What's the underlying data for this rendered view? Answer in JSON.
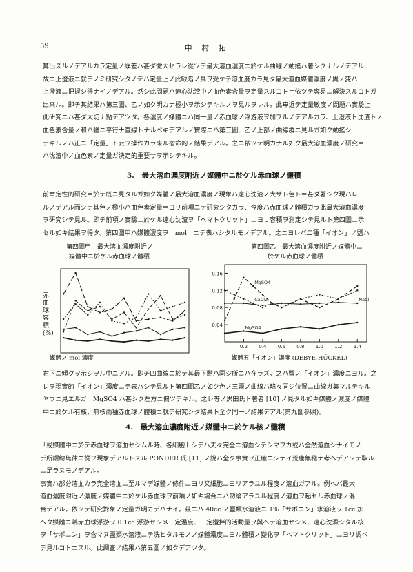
{
  "header": {
    "page_number": "59",
    "author": "中村拓"
  },
  "para1": [
    "算出スルノデアルカラ定量ノ誤差ハ甚ダ微大セラレ從ツテ最大溶血濃度ニ於ケル曲線ノ動搖ハ著シクナルノデアル",
    "故ニ上澄液ニ就テノミ研究シタノデハ定量上ノ此缺陷ノ爲ヲ受ケテ溶血度カラ見タ最大溶血媒體濃度ノ異ノ変ハ",
    "上澄液ニ把握シ得ナイノデアル。然シ此問題ハ遠心沈渣中ノ血色素含量ヲ定量スルコト＝依ツテ容易ニ解決スルコトガ",
    "出來ル。即チ其結果ハ第三圖、乙ノ如ク明カナ極小ヲ示シテキルノヲ見ルヲレル。此卑近テ定量敏度ノ問題ハ實驗上",
    "此研究ニハ甚ダ大切ナ點デアツタ。各濃度ノ媒體ニハ同一量ノ赤血球ノ浮游液ヲ加フルノデアルカラ、上澄液ト沈渣トノ",
    "血色素含量ノ和ハ猶ニ平行ナ直線トナルベキデアルノ實際ニハ第三圖、乙ノ上部ノ曲線群ニ見ルガ如ク動搖シ",
    "テキルノハ正ニ「定量」ト云フ操作カラ來ル宿命的ノ結果デアル。之ニ依ツテ明カナル如ク最大溶血濃度ノ研究＝",
    "ハ沈渣中ノ血色素ノ定量ガ決定的重要サヲ示シテキル。"
  ],
  "heading3": "3.　最大溶血濃度附近ノ媒體中ニ於ケル赤血球ノ體積",
  "para2": [
    "前章定性的研究＝於テ既ニ見タルガ如ク媒體ノ最大溶血濃度ノ現象ハ遠心沈渣ノ大サト色ト＝甚ダ著シク現ハレ",
    "ルノデアル而シテ其色ノ極小ハ血色素定量＝ヨリ前項ニテ研究シタカラ、今度ハ赤血球ノ體積カラ此最大溶血濃度",
    "ヲ研究シテ見ル。即チ前項ノ實驗ニ於ケル遠心沈渣ヲ「ヘマトクリット」ニヨリ容積ヲ測定シテ見ルト第四圖ニ示",
    "セル如キ結果ヲ得タ。第四圖甲ハ媒體濃度ヲ　mol　ニテ表ハシタルモノデアル。之ニヨレバ二種「イオン」ノ鹽ハ"
  ],
  "figA": {
    "caption_line1": "第四圖甲　最大溶血濃度附近ノ",
    "caption_line2": "媒體中ニ於ケル赤血球ノ體積",
    "ylabel": "赤血球容積(%)",
    "xlabel": "媒體ノ mol 濃度"
  },
  "figB": {
    "caption_line1": "第四圖乙　最大溶血濃度附近ノ媒體中ニ",
    "caption_line2": "於ケル赤血球ノ體積",
    "xlabel": "媒體五「イオン」濃度 (DEBYE-HÜCKEL)"
  },
  "chart_data": [
    {
      "type": "line",
      "title": "第四圖甲　最大溶血濃度附近ノ媒體中ニ於ケル赤血球ノ體積",
      "xlabel": "媒體ノ mol 濃度",
      "ylabel": "赤血球容積(%)",
      "x": [
        0,
        1,
        2,
        3,
        4,
        5,
        6,
        7,
        8,
        9,
        10
      ],
      "ylim": [
        0,
        100
      ],
      "series": [
        {
          "name": "",
          "values": [
            25,
            62,
            50,
            55,
            40,
            48,
            30,
            52,
            68,
            40,
            45
          ]
        },
        {
          "name": "",
          "values": [
            40,
            58,
            45,
            60,
            38,
            35,
            42,
            70,
            50,
            55,
            60
          ]
        },
        {
          "name": "",
          "values": [
            70,
            95,
            55,
            48,
            52,
            65,
            38,
            40,
            42,
            38,
            50
          ]
        },
        {
          "name": "",
          "values": [
            18,
            15,
            14,
            16,
            14,
            13,
            15,
            14,
            16,
            15,
            18
          ]
        },
        {
          "name": "",
          "values": [
            28,
            30,
            22,
            25,
            20,
            24,
            26,
            30,
            22,
            28,
            30
          ]
        }
      ]
    },
    {
      "type": "line",
      "title": "第四圖乙　最大溶血濃度附近ノ媒體中ニ於ケル赤血球ノ體積",
      "xlabel": "媒體五「イオン」濃度 (DEBYE-HÜCKEL)",
      "ylabel": "",
      "x_ticks": [
        "0.2",
        "0.4",
        "0.6",
        "0.8",
        "1.0",
        "1.2",
        "1.4"
      ],
      "y_ticks": [
        "0.04",
        "0.08",
        "0.12",
        "0.16"
      ],
      "ylim": [
        0.0,
        0.18
      ],
      "xlim": [
        0.0,
        1.5
      ],
      "series": [
        {
          "name": "MgSO4",
          "x": [
            0.0,
            0.1,
            0.2,
            0.3,
            0.4,
            0.5,
            0.6,
            0.7,
            0.8,
            1.0,
            1.2,
            1.4
          ],
          "values": [
            0.05,
            0.1,
            0.15,
            0.13,
            0.11,
            0.09,
            0.08,
            0.09,
            0.1,
            0.08,
            0.1,
            0.13
          ]
        },
        {
          "name": "CaCl2",
          "x": [
            0.0,
            0.1,
            0.2,
            0.3,
            0.4,
            0.5,
            0.6,
            0.7,
            0.8,
            1.0,
            1.2,
            1.4
          ],
          "values": [
            0.12,
            0.11,
            0.1,
            0.09,
            0.08,
            0.09,
            0.08,
            0.09,
            0.1,
            0.11,
            0.1,
            0.12
          ]
        },
        {
          "name": "NaCl",
          "x": [
            0.0,
            0.2,
            0.4,
            0.6,
            0.8,
            1.0,
            1.2,
            1.4
          ],
          "values": [
            0.09,
            0.09,
            0.085,
            0.09,
            0.088,
            0.09,
            0.092,
            0.09
          ]
        },
        {
          "name": "MgSO4",
          "x": [
            0.0,
            0.2,
            0.4,
            0.6,
            0.8,
            1.0,
            1.2,
            1.4
          ],
          "values": [
            0.02,
            0.025,
            0.02,
            0.03,
            0.035,
            0.03,
            0.04,
            0.045
          ]
        }
      ]
    }
  ],
  "para3": [
    "右下ニ傾クヲ示シヲル中ニアル。即チ四曲線ニ於テ其最下點ハ同ジ所ニハ在ラズ。之ハ鹽ノ「イオン」濃度ニヨル。之",
    "レヲ現實的「イオン」濃度ニテ表ハシテ見ルト第四圖乙ノ如ク色ノ三鹽ノ曲線ハ略々同ジ位置ニ曲線ガ集マルテキル",
    "ヤウニ見エルガ　MgSO4 ハ甚シク左方ニ偏ツテキル。之レ等ノ黒田氏ト著者 [10] ノ見タル如キ媒體ノ濃度ノ媒體",
    "中ニ於ケル有核、無核兩種赤血球ノ體積ニ就テ研究シタ結果ト全ク同一ノ結果デアル(第九圖參照)。"
  ],
  "heading4": "4.　最大溶血濃度附近ノ媒體中ニ於ケル核ノ體積",
  "para4": [
    "「或媒體中ニ於テ赤血球ヲ溶血セシムル時、各細胞トシテハ夫々完全ニ溶血シテシマフカ或ハ全然溶血シナイモノ",
    "デ所謂總無律ニ從フ現象デアルトスル PONDER 氏 [11] ノ說ハ全ク事實ヲ正確ニシナイ荒唐無稽ナ考ヘデアツテ取ル",
    "ニ足ラヌモノデアル。",
    "事實ハ部分溶血カラ完全溶血ニ至ルマデ媒體ノ條件ニヨリ又細胞ニヨリアラユル程度ノ溶血ガアル。例ヘバ最大",
    "溶血濃度附近ノ濃度ノ媒體中ニ於ケル赤血球ヲ前項ノ如キ場合ニハ勿論アラユル程度ノ溶血ヲ起セル赤血球ノ混",
    "合デアル。依ツテ研究對象ノ定量ガ明カデハナイ。茲ニハ 40cc ノ鹽類水溶液ニ 1%「サポニン」水溶液ヲ 1cc 加",
    "ヘタ媒體ニ鶏赤血球浮游ヲ 0.1cc 浮游セシメ一定温度、一定攪拌的活動量ヲ與ヘテ溶血セシメ、遠心沈澱シタル核",
    "ヲ「サポニン」ヲ含マヌ鹽類水溶液ニテ洗ヒタルモノノ媒體濃度ニヨル體積ノ變化ヲ「ヘマトクリット」ニヨリ調ベ",
    "テ見ルコトニスル。此調査ノ結果ハ第五圖ノ如クデアツタ。"
  ]
}
